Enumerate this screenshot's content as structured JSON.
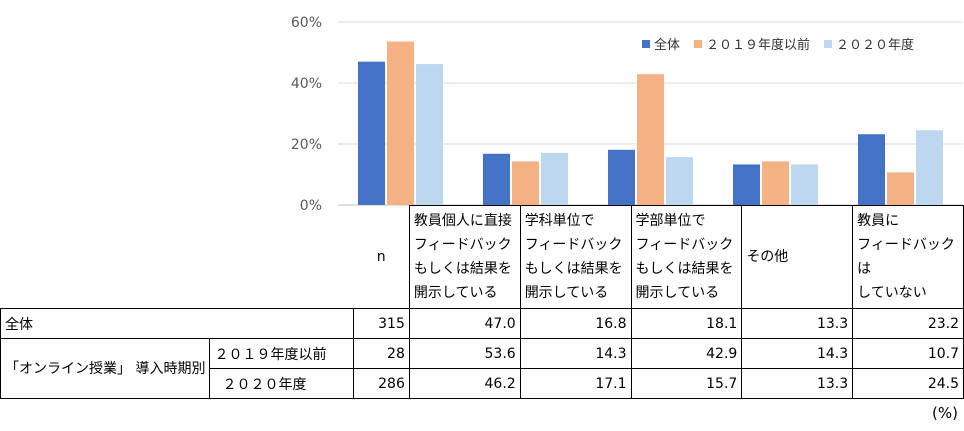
{
  "chart_data": {
    "type": "bar",
    "categories": [
      "教員個人に直接\nフィードバック\nもしくは結果を\n開示している",
      "学科単位で\nフィードバック\nもしくは結果を\n開示している",
      "学部単位で\nフィードバック\nもしくは結果を\n開示している",
      "その他",
      "教員に\nフィードバックは\nしていない"
    ],
    "series": [
      {
        "name": "全体",
        "values": [
          47.0,
          16.8,
          18.1,
          13.3,
          23.2
        ],
        "color": "#4472C4"
      },
      {
        "name": "２０１９年度以前",
        "values": [
          53.6,
          14.3,
          42.9,
          14.3,
          10.7
        ],
        "color": "#F4B183"
      },
      {
        "name": "２０２０年度",
        "values": [
          46.2,
          17.1,
          15.7,
          13.3,
          24.5
        ],
        "color": "#BDD7EE"
      }
    ],
    "ylim": [
      0,
      60
    ],
    "yticks": [
      "0%",
      "20%",
      "40%",
      "60%"
    ],
    "grid": true,
    "legend_position": "top-right"
  },
  "table": {
    "n_header": "n",
    "rows": [
      {
        "label": "全体",
        "n": "315",
        "values": [
          "47.0",
          "16.8",
          "18.1",
          "13.3",
          "23.2"
        ]
      },
      {
        "group": "「オンライン授業」\n導入時期別",
        "label": "２０１９年度以前",
        "n": "28",
        "values": [
          "53.6",
          "14.3",
          "42.9",
          "14.3",
          "10.7"
        ]
      },
      {
        "label": "２０２０年度",
        "n": "286",
        "values": [
          "46.2",
          "17.1",
          "15.7",
          "13.3",
          "24.5"
        ]
      }
    ]
  },
  "unit": "(%)"
}
